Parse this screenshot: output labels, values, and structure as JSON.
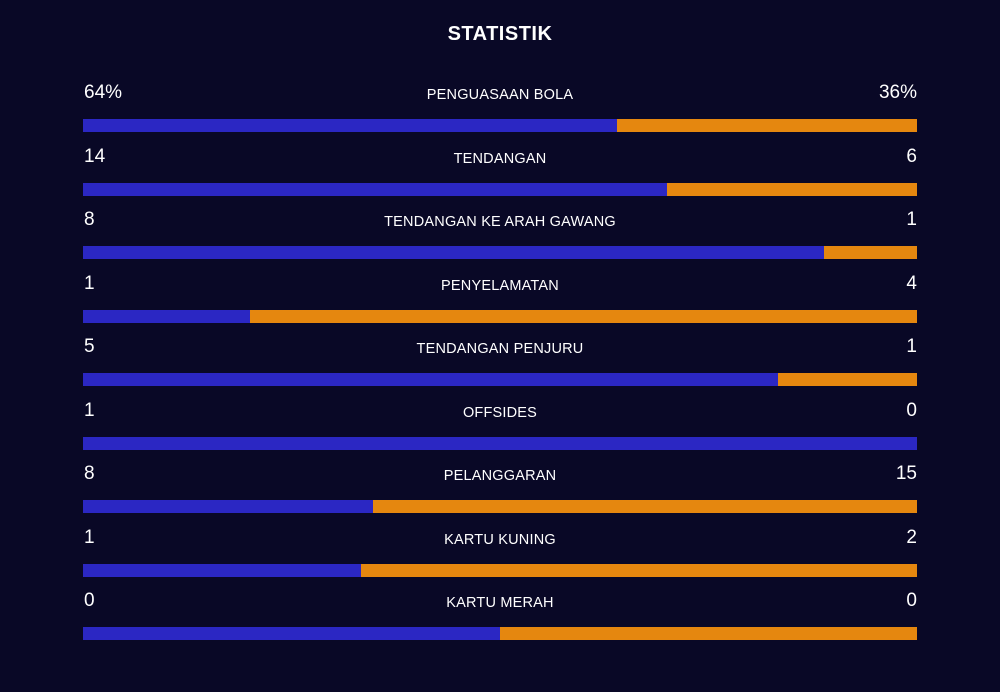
{
  "title": "STATISTIK",
  "colors": {
    "background": "#090826",
    "home": "#2b27c3",
    "away": "#e5870f",
    "text": "#ffffff"
  },
  "stats": [
    {
      "label": "PENGUASAAN BOLA",
      "home": "64%",
      "away": "36%",
      "home_share": 0.64
    },
    {
      "label": "TENDANGAN",
      "home": "14",
      "away": "6",
      "home_share": 0.7
    },
    {
      "label": "TENDANGAN KE ARAH GAWANG",
      "home": "8",
      "away": "1",
      "home_share": 0.889
    },
    {
      "label": "PENYELAMATAN",
      "home": "1",
      "away": "4",
      "home_share": 0.2
    },
    {
      "label": "TENDANGAN PENJURU",
      "home": "5",
      "away": "1",
      "home_share": 0.833
    },
    {
      "label": "OFFSIDES",
      "home": "1",
      "away": "0",
      "home_share": 1.0
    },
    {
      "label": "PELANGGARAN",
      "home": "8",
      "away": "15",
      "home_share": 0.348
    },
    {
      "label": "KARTU KUNING",
      "home": "1",
      "away": "2",
      "home_share": 0.333
    },
    {
      "label": "KARTU MERAH",
      "home": "0",
      "away": "0",
      "home_share": 0.5
    }
  ]
}
